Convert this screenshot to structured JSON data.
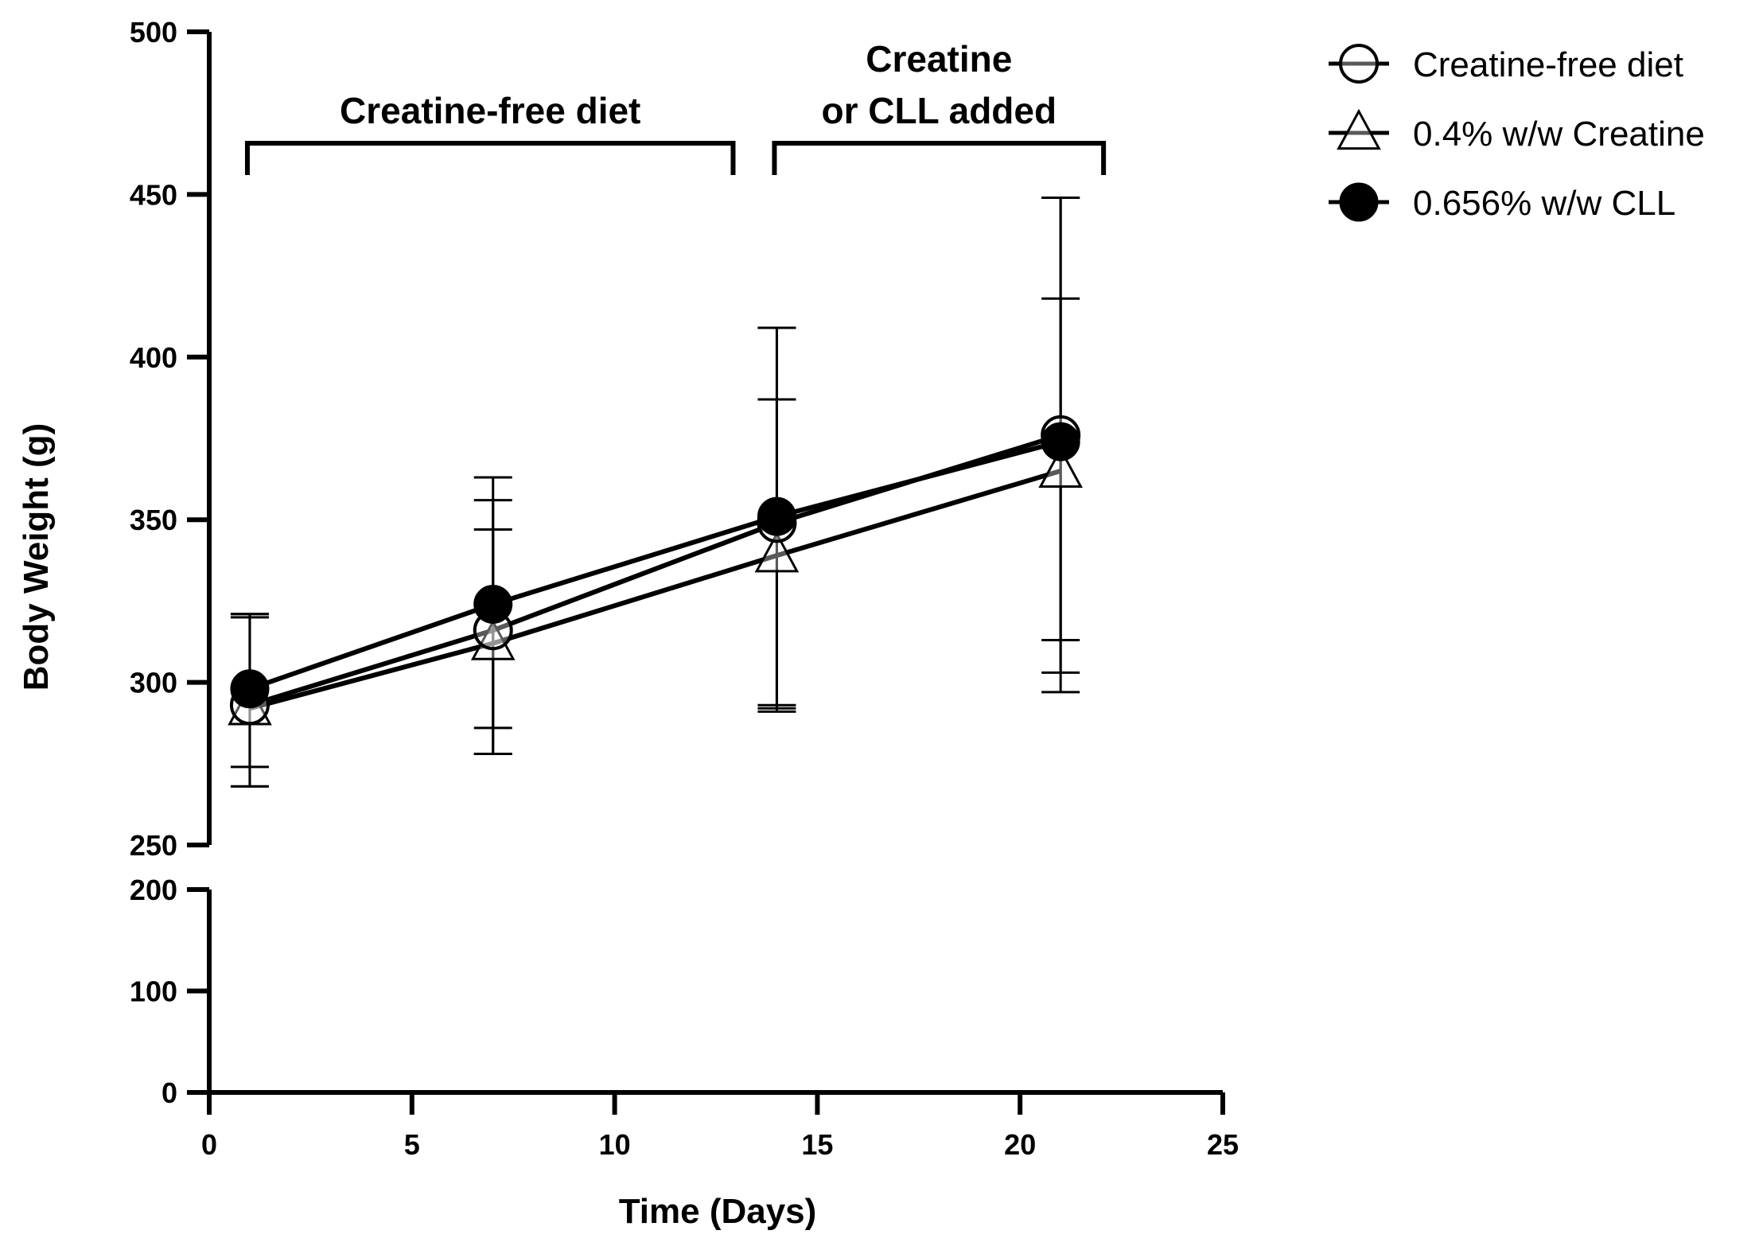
{
  "chart_data": {
    "type": "line",
    "xlabel": "Time (Days)",
    "ylabel": "Body Weight (g)",
    "xlim": [
      0,
      25
    ],
    "x_ticks": [
      0,
      5,
      10,
      15,
      20,
      25
    ],
    "y_axis_break": true,
    "y_lower_ticks": [
      0,
      100,
      200
    ],
    "y_upper_ticks": [
      250,
      300,
      350,
      400,
      450,
      500
    ],
    "grid": false,
    "legend_position": "top-right",
    "annotations": [
      {
        "id": "phase1",
        "lines": [
          "Creatine-free diet"
        ],
        "x_start": 1,
        "x_end": 13
      },
      {
        "id": "phase2",
        "lines": [
          "Creatine",
          "or CLL added"
        ],
        "x_start": 14,
        "x_end": 22
      }
    ],
    "series": [
      {
        "name": "Creatine-free diet",
        "marker": "open-circle",
        "x": [
          1,
          7,
          14,
          21
        ],
        "y": [
          293,
          316,
          349,
          376
        ],
        "err_low": [
          268,
          278,
          291,
          303
        ],
        "err_high": [
          321,
          356,
          409,
          449
        ]
      },
      {
        "name": "0.4% w/w Creatine",
        "marker": "open-triangle",
        "x": [
          1,
          7,
          14,
          21
        ],
        "y": [
          292,
          312,
          339,
          365
        ],
        "err_low": [
          268,
          278,
          292,
          297
        ],
        "err_high": [
          321,
          347,
          387,
          418
        ]
      },
      {
        "name": "0.656% w/w CLL",
        "marker": "filled-circle",
        "x": [
          1,
          7,
          14,
          21
        ],
        "y": [
          298,
          324,
          351,
          374
        ],
        "err_low": [
          274,
          286,
          293,
          313
        ],
        "err_high": [
          320,
          363,
          409,
          449
        ]
      }
    ]
  }
}
